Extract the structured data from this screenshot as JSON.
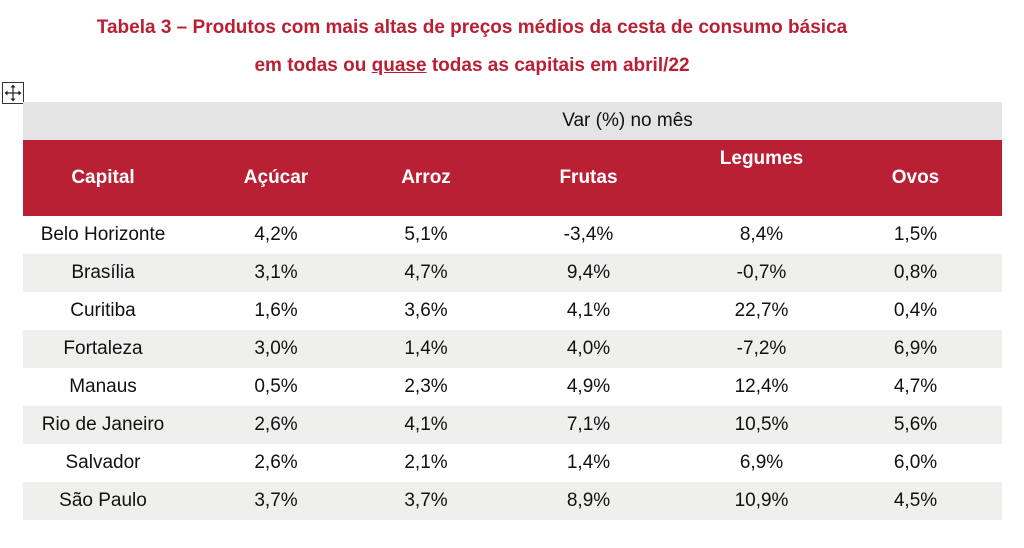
{
  "title": {
    "line1": "Tabela 3 – Produtos com mais altas de preços médios da cesta de consumo básica",
    "line2_pre": "em todas ou ",
    "line2_underlined": "quase",
    "line2_post": " todas as capitais em abril/22"
  },
  "move_handle_icon": "four-way-arrow-icon",
  "table": {
    "group_header": "Var (%) no mês",
    "headers": [
      "Capital",
      "Açúcar",
      "Arroz",
      "Frutas",
      "Legumes",
      "Ovos"
    ],
    "rows": [
      [
        "Belo Horizonte",
        "4,2%",
        "5,1%",
        "-3,4%",
        "8,4%",
        "1,5%"
      ],
      [
        "Brasília",
        "3,1%",
        "4,7%",
        "9,4%",
        "-0,7%",
        "0,8%"
      ],
      [
        "Curitiba",
        "1,6%",
        "3,6%",
        "4,1%",
        "22,7%",
        "0,4%"
      ],
      [
        "Fortaleza",
        "3,0%",
        "1,4%",
        "4,0%",
        "-7,2%",
        "6,9%"
      ],
      [
        "Manaus",
        "0,5%",
        "2,3%",
        "4,9%",
        "12,4%",
        "4,7%"
      ],
      [
        "Rio de Janeiro",
        "2,6%",
        "4,1%",
        "7,1%",
        "10,5%",
        "5,6%"
      ],
      [
        "Salvador",
        "2,6%",
        "2,1%",
        "1,4%",
        "6,9%",
        "6,0%"
      ],
      [
        "São Paulo",
        "3,7%",
        "3,7%",
        "8,9%",
        "10,9%",
        "4,5%"
      ]
    ]
  },
  "colors": {
    "accent": "#b92034",
    "group_header_bg": "#e4e4e4",
    "alt_row_bg": "#efefee"
  }
}
